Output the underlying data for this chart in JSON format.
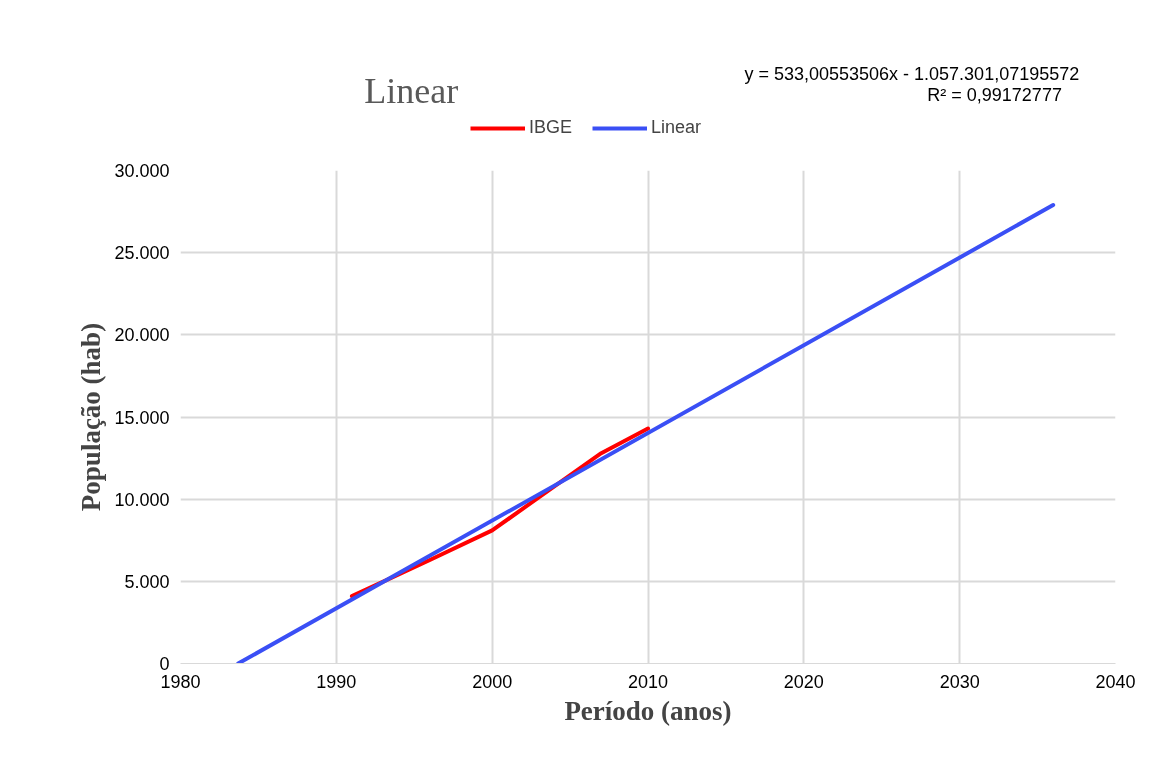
{
  "chart_data": {
    "type": "line",
    "title": "Linear",
    "xlabel": "Período (anos)",
    "ylabel": "População (hab)",
    "annotations": [
      "y = 533,00553506x - 1.057.301,07195572",
      "R² = 0,99172777"
    ],
    "series": [
      {
        "name": "IBGE",
        "color": "#ff0000",
        "x": [
          1991,
          1996,
          2000,
          2007,
          2010
        ],
        "values": [
          4100,
          6300,
          8100,
          12800,
          14300
        ]
      },
      {
        "name": "Linear",
        "color": "#3a4ff5",
        "x": [
          1983.7,
          2036
        ],
        "values": [
          0,
          27900
        ]
      }
    ],
    "xlim": [
      1980,
      2040
    ],
    "xticks": [
      1980,
      1990,
      2000,
      2010,
      2020,
      2030,
      2040
    ],
    "ylim": [
      0,
      30000
    ],
    "yticks": [
      {
        "value": 0,
        "label": "0"
      },
      {
        "value": 5000,
        "label": "5.000"
      },
      {
        "value": 10000,
        "label": "10.000"
      },
      {
        "value": 15000,
        "label": "15.000"
      },
      {
        "value": 20000,
        "label": "20.000"
      },
      {
        "value": 25000,
        "label": "25.000"
      },
      {
        "value": 30000,
        "label": "30.000"
      }
    ],
    "grid": true,
    "legend": "top",
    "line_style": "solid"
  }
}
